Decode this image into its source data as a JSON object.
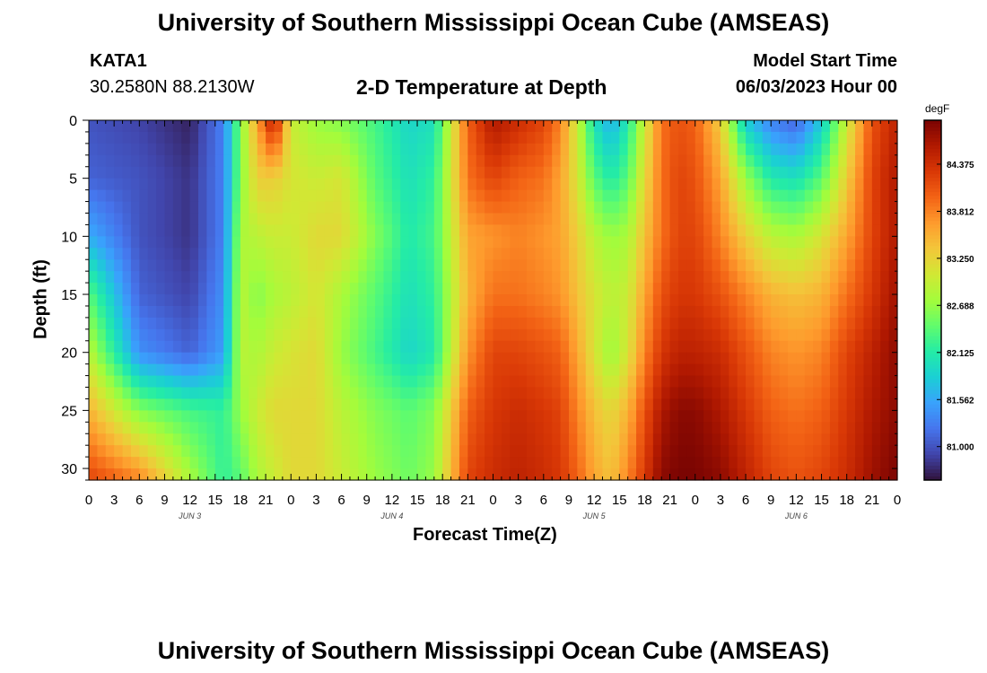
{
  "header": {
    "title": "University of Southern Mississippi Ocean Cube (AMSEAS)",
    "station": "KATA1",
    "coords": "30.2580N  88.2130W",
    "plot_title": "2-D Temperature at Depth",
    "model_label": "Model Start Time",
    "model_time": "06/03/2023 Hour 00"
  },
  "footer": {
    "title": "University of Southern Mississippi Ocean Cube (AMSEAS)"
  },
  "chart_data": {
    "type": "heatmap",
    "title": "2-D Temperature at Depth",
    "xlabel": "Forecast Time(Z)",
    "ylabel": "Depth (ft)",
    "x_range_hours": [
      0,
      96
    ],
    "y_range_ft": [
      0,
      31
    ],
    "x_ticks": [
      "0",
      "3",
      "6",
      "9",
      "12",
      "15",
      "18",
      "21",
      "0",
      "3",
      "6",
      "9",
      "12",
      "15",
      "18",
      "21",
      "0",
      "3",
      "6",
      "9",
      "12",
      "15",
      "18",
      "21",
      "0",
      "3",
      "6",
      "9",
      "12",
      "15",
      "18",
      "21",
      "0"
    ],
    "day_labels": [
      {
        "label": "JUN 3",
        "hour": 12
      },
      {
        "label": "JUN 4",
        "hour": 36
      },
      {
        "label": "JUN 5",
        "hour": 60
      },
      {
        "label": "JUN 6",
        "hour": 84
      }
    ],
    "y_ticks": [
      0,
      5,
      10,
      15,
      20,
      25,
      30
    ],
    "colorbar": {
      "unit": "degF",
      "min": 80.6,
      "max": 84.9,
      "ticks": [
        "84.375",
        "83.812",
        "83.250",
        "82.688",
        "82.125",
        "81.562",
        "81.000"
      ],
      "tick_values": [
        84.375,
        83.812,
        83.25,
        82.688,
        82.125,
        81.562,
        81.0
      ],
      "colors": [
        "#30123b",
        "#4145ab",
        "#4675ed",
        "#39a2fc",
        "#1bcfd4",
        "#24eca6",
        "#61fc6c",
        "#a4fc3b",
        "#d1e834",
        "#f3c63a",
        "#fe9b2d",
        "#f36315",
        "#d93806",
        "#b11901",
        "#7a0402"
      ]
    },
    "depths_ft": [
      0,
      5,
      10,
      15,
      20,
      25,
      31
    ],
    "hours": [
      0,
      6,
      12,
      16,
      18,
      20,
      22,
      24,
      27,
      30,
      34,
      38,
      41,
      45,
      48,
      51,
      54,
      56,
      58,
      60,
      62,
      64,
      66,
      68,
      70,
      72,
      75,
      78,
      81,
      84,
      87,
      90,
      93,
      96
    ],
    "temperature_degF": [
      [
        81.0,
        80.9,
        80.7,
        81.3,
        82.6,
        83.6,
        84.6,
        83.0,
        82.7,
        82.6,
        82.3,
        81.9,
        82.0,
        84.0,
        84.6,
        84.4,
        84.2,
        83.8,
        83.0,
        82.0,
        81.6,
        82.1,
        83.0,
        83.9,
        84.1,
        84.0,
        83.3,
        81.8,
        81.3,
        81.1,
        81.8,
        83.0,
        84.1,
        84.5
      ],
      [
        81.1,
        81.0,
        80.8,
        81.3,
        82.6,
        83.3,
        83.3,
        83.1,
        83.0,
        83.1,
        82.4,
        82.0,
        82.2,
        83.9,
        84.2,
        84.0,
        83.9,
        83.6,
        83.1,
        82.4,
        82.1,
        82.4,
        83.2,
        83.9,
        84.2,
        84.1,
        83.6,
        82.7,
        82.1,
        82.0,
        82.4,
        83.3,
        84.2,
        84.6
      ],
      [
        81.6,
        81.0,
        80.8,
        81.3,
        82.8,
        82.9,
        83.0,
        83.0,
        83.2,
        83.2,
        82.6,
        82.1,
        82.3,
        83.6,
        83.7,
        83.8,
        83.7,
        83.6,
        83.3,
        82.9,
        82.7,
        82.8,
        83.4,
        83.9,
        84.2,
        84.2,
        83.8,
        83.3,
        82.9,
        82.8,
        83.1,
        83.6,
        84.2,
        84.6
      ],
      [
        82.4,
        81.1,
        80.9,
        81.4,
        82.9,
        82.6,
        82.8,
        82.9,
        83.1,
        82.8,
        82.4,
        82.0,
        82.2,
        83.5,
        83.9,
        83.9,
        83.8,
        83.7,
        83.4,
        83.1,
        82.9,
        83.0,
        83.6,
        84.1,
        84.3,
        84.3,
        84.1,
        83.8,
        83.5,
        83.4,
        83.5,
        83.9,
        84.3,
        84.7
      ],
      [
        82.9,
        81.4,
        81.1,
        81.5,
        82.9,
        82.8,
        83.0,
        83.1,
        83.2,
        82.7,
        82.3,
        81.9,
        82.1,
        83.7,
        84.2,
        84.2,
        84.1,
        84.0,
        83.6,
        83.1,
        82.7,
        83.1,
        83.8,
        84.3,
        84.5,
        84.5,
        84.4,
        84.1,
        83.8,
        83.7,
        83.8,
        84.2,
        84.5,
        84.8
      ],
      [
        83.5,
        82.6,
        82.3,
        82.2,
        82.7,
        83.0,
        83.2,
        83.2,
        83.2,
        82.9,
        82.6,
        82.4,
        82.6,
        84.0,
        84.3,
        84.4,
        84.3,
        84.2,
        83.8,
        83.4,
        83.2,
        83.5,
        84.1,
        84.6,
        84.8,
        84.8,
        84.6,
        84.3,
        84.0,
        83.9,
        84.0,
        84.3,
        84.6,
        84.8
      ],
      [
        84.2,
        83.8,
        82.8,
        82.2,
        82.4,
        82.8,
        83.0,
        83.2,
        83.2,
        83.0,
        82.7,
        82.5,
        82.7,
        84.2,
        84.4,
        84.5,
        84.4,
        84.3,
        84.0,
        83.6,
        83.4,
        83.8,
        84.3,
        84.8,
        84.9,
        84.9,
        84.8,
        84.5,
        84.2,
        84.1,
        84.2,
        84.4,
        84.7,
        84.9
      ]
    ]
  }
}
